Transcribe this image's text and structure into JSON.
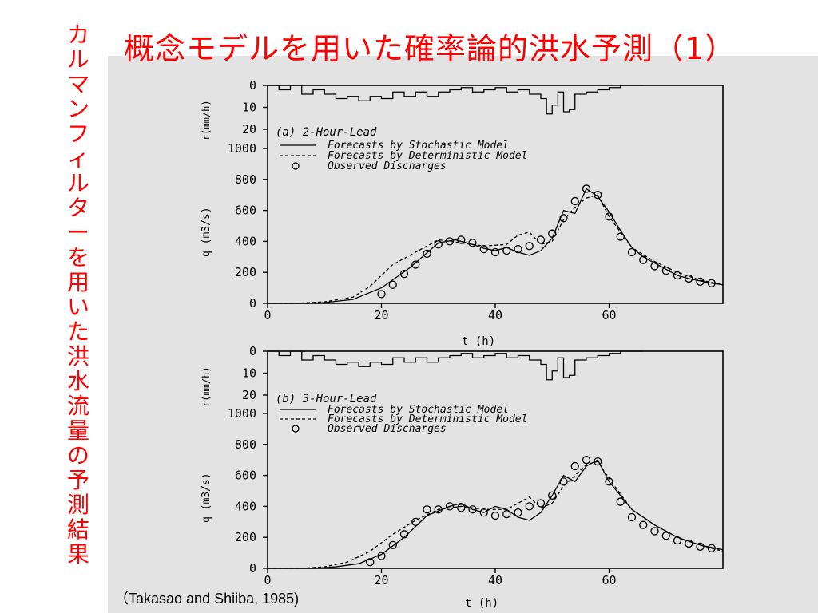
{
  "slide": {
    "title": "概念モデルを用いた確率論的洪水予測（1）",
    "side_title": "カルマンフィルターを用いた洪水流量の予測結果",
    "citation": "（Takasao and Shiiba, 1985)"
  },
  "chart_data": [
    {
      "type": "line",
      "panel_label": "(a) 2-Hour-Lead",
      "legend": [
        "Forecasts by Stochastic Model",
        "Forecasts by Deterministic Model",
        "Observed Discharges"
      ],
      "xlabel": "t (h)",
      "ylabel": "q (m3/s)",
      "rain_ylabel": "r(mm/h)",
      "xlim": [
        0,
        80
      ],
      "ylim": [
        0,
        1000
      ],
      "rain_ylim": [
        0,
        20
      ],
      "x_ticks": [
        "0",
        "20",
        "40",
        "60"
      ],
      "y_ticks": [
        "0",
        "200",
        "400",
        "600",
        "800",
        "1000"
      ],
      "rain_ticks": [
        "0",
        "10",
        "20"
      ],
      "rainfall": {
        "t": [
          0,
          2,
          4,
          6,
          8,
          10,
          12,
          14,
          16,
          18,
          20,
          22,
          24,
          26,
          28,
          30,
          32,
          34,
          36,
          38,
          40,
          42,
          44,
          46,
          48,
          49,
          50,
          51,
          52,
          53,
          54,
          56,
          58,
          60,
          62,
          66
        ],
        "r": [
          0,
          2,
          0,
          4,
          2,
          4,
          6,
          5,
          7,
          5,
          6,
          3,
          5,
          3,
          5,
          3,
          2,
          1,
          3,
          2,
          1,
          3,
          2,
          4,
          6,
          13,
          9,
          3,
          12,
          11,
          4,
          3,
          2,
          1,
          0,
          0
        ]
      },
      "series": [
        {
          "name": "Forecasts by Stochastic Model",
          "style": "solid",
          "x": [
            0,
            7,
            10,
            15,
            20,
            25,
            30,
            33,
            36,
            38,
            40,
            42,
            44,
            46,
            48,
            50,
            52,
            54,
            56,
            58,
            60,
            62,
            64,
            66,
            68,
            70,
            72,
            74,
            76,
            78,
            80
          ],
          "y": [
            0,
            0,
            5,
            25,
            100,
            230,
            390,
            410,
            380,
            355,
            340,
            360,
            330,
            310,
            340,
            420,
            600,
            580,
            740,
            690,
            590,
            470,
            360,
            300,
            260,
            220,
            180,
            160,
            145,
            130,
            120
          ]
        },
        {
          "name": "Forecasts by Deterministic Model",
          "style": "dashed",
          "x": [
            0,
            5,
            10,
            15,
            18,
            22,
            26,
            30,
            34,
            38,
            42,
            44,
            46,
            48,
            50,
            52,
            54,
            56,
            58,
            60,
            64,
            68,
            72,
            76,
            80
          ],
          "y": [
            0,
            0,
            10,
            40,
            110,
            250,
            330,
            410,
            390,
            370,
            380,
            440,
            460,
            380,
            400,
            540,
            620,
            680,
            700,
            560,
            360,
            270,
            200,
            150,
            120
          ]
        }
      ],
      "observed": {
        "name": "Observed Discharges",
        "x": [
          20,
          22,
          24,
          26,
          28,
          30,
          32,
          34,
          36,
          38,
          40,
          42,
          44,
          46,
          48,
          50,
          52,
          54,
          56,
          58,
          60,
          62,
          64,
          66,
          68,
          70,
          72,
          74,
          76,
          78
        ],
        "y": [
          60,
          120,
          190,
          250,
          320,
          380,
          400,
          410,
          390,
          350,
          330,
          340,
          350,
          370,
          410,
          450,
          550,
          660,
          740,
          700,
          560,
          430,
          330,
          280,
          240,
          210,
          180,
          160,
          140,
          130
        ]
      }
    },
    {
      "type": "line",
      "panel_label": "(b) 3-Hour-Lead",
      "legend": [
        "Forecasts by Stochastic Model",
        "Forecasts by Deterministic Model",
        "Observed Discharges"
      ],
      "xlabel": "t (h)",
      "ylabel": "q (m3/s)",
      "rain_ylabel": "r(mm/h)",
      "xlim": [
        0,
        80
      ],
      "ylim": [
        0,
        1000
      ],
      "rain_ylim": [
        0,
        20
      ],
      "x_ticks": [
        "0",
        "20",
        "40",
        "60"
      ],
      "y_ticks": [
        "0",
        "200",
        "400",
        "600",
        "800",
        "1000"
      ],
      "rain_ticks": [
        "0",
        "10",
        "20"
      ],
      "rainfall": {
        "t": [
          0,
          2,
          4,
          6,
          8,
          10,
          12,
          14,
          16,
          18,
          20,
          22,
          24,
          26,
          28,
          30,
          32,
          34,
          36,
          38,
          40,
          42,
          44,
          46,
          48,
          49,
          50,
          51,
          52,
          53,
          54,
          56,
          58,
          60,
          62,
          66
        ],
        "r": [
          0,
          2,
          0,
          4,
          2,
          4,
          6,
          5,
          7,
          5,
          6,
          3,
          5,
          3,
          5,
          3,
          2,
          1,
          3,
          2,
          1,
          3,
          2,
          4,
          6,
          13,
          9,
          3,
          12,
          11,
          4,
          3,
          2,
          1,
          0,
          0
        ]
      },
      "series": [
        {
          "name": "Forecasts by Stochastic Model",
          "style": "solid",
          "x": [
            0,
            8,
            12,
            16,
            20,
            24,
            28,
            32,
            34,
            36,
            38,
            40,
            42,
            44,
            46,
            48,
            50,
            52,
            54,
            56,
            58,
            60,
            64,
            68,
            72,
            76,
            80
          ],
          "y": [
            0,
            0,
            10,
            30,
            90,
            200,
            340,
            400,
            420,
            380,
            360,
            400,
            380,
            330,
            310,
            360,
            470,
            600,
            560,
            660,
            700,
            560,
            380,
            280,
            200,
            150,
            120
          ]
        },
        {
          "name": "Forecasts by Deterministic Model",
          "style": "dashed",
          "x": [
            0,
            6,
            10,
            14,
            18,
            22,
            26,
            30,
            34,
            38,
            42,
            44,
            46,
            48,
            50,
            52,
            54,
            56,
            58,
            60,
            64,
            68,
            72,
            76,
            80
          ],
          "y": [
            0,
            0,
            10,
            40,
            110,
            220,
            310,
            380,
            400,
            380,
            380,
            420,
            460,
            390,
            420,
            530,
            600,
            670,
            690,
            580,
            380,
            280,
            200,
            150,
            110
          ]
        }
      ],
      "observed": {
        "name": "Observed Discharges",
        "x": [
          18,
          20,
          22,
          24,
          26,
          28,
          30,
          32,
          34,
          36,
          38,
          40,
          42,
          44,
          46,
          48,
          50,
          52,
          54,
          56,
          58,
          60,
          62,
          64,
          66,
          68,
          70,
          72,
          74,
          76,
          78
        ],
        "y": [
          40,
          80,
          150,
          220,
          300,
          380,
          380,
          400,
          390,
          380,
          360,
          340,
          350,
          360,
          400,
          420,
          470,
          560,
          660,
          700,
          690,
          560,
          430,
          330,
          280,
          240,
          210,
          180,
          160,
          140,
          130
        ]
      }
    }
  ]
}
